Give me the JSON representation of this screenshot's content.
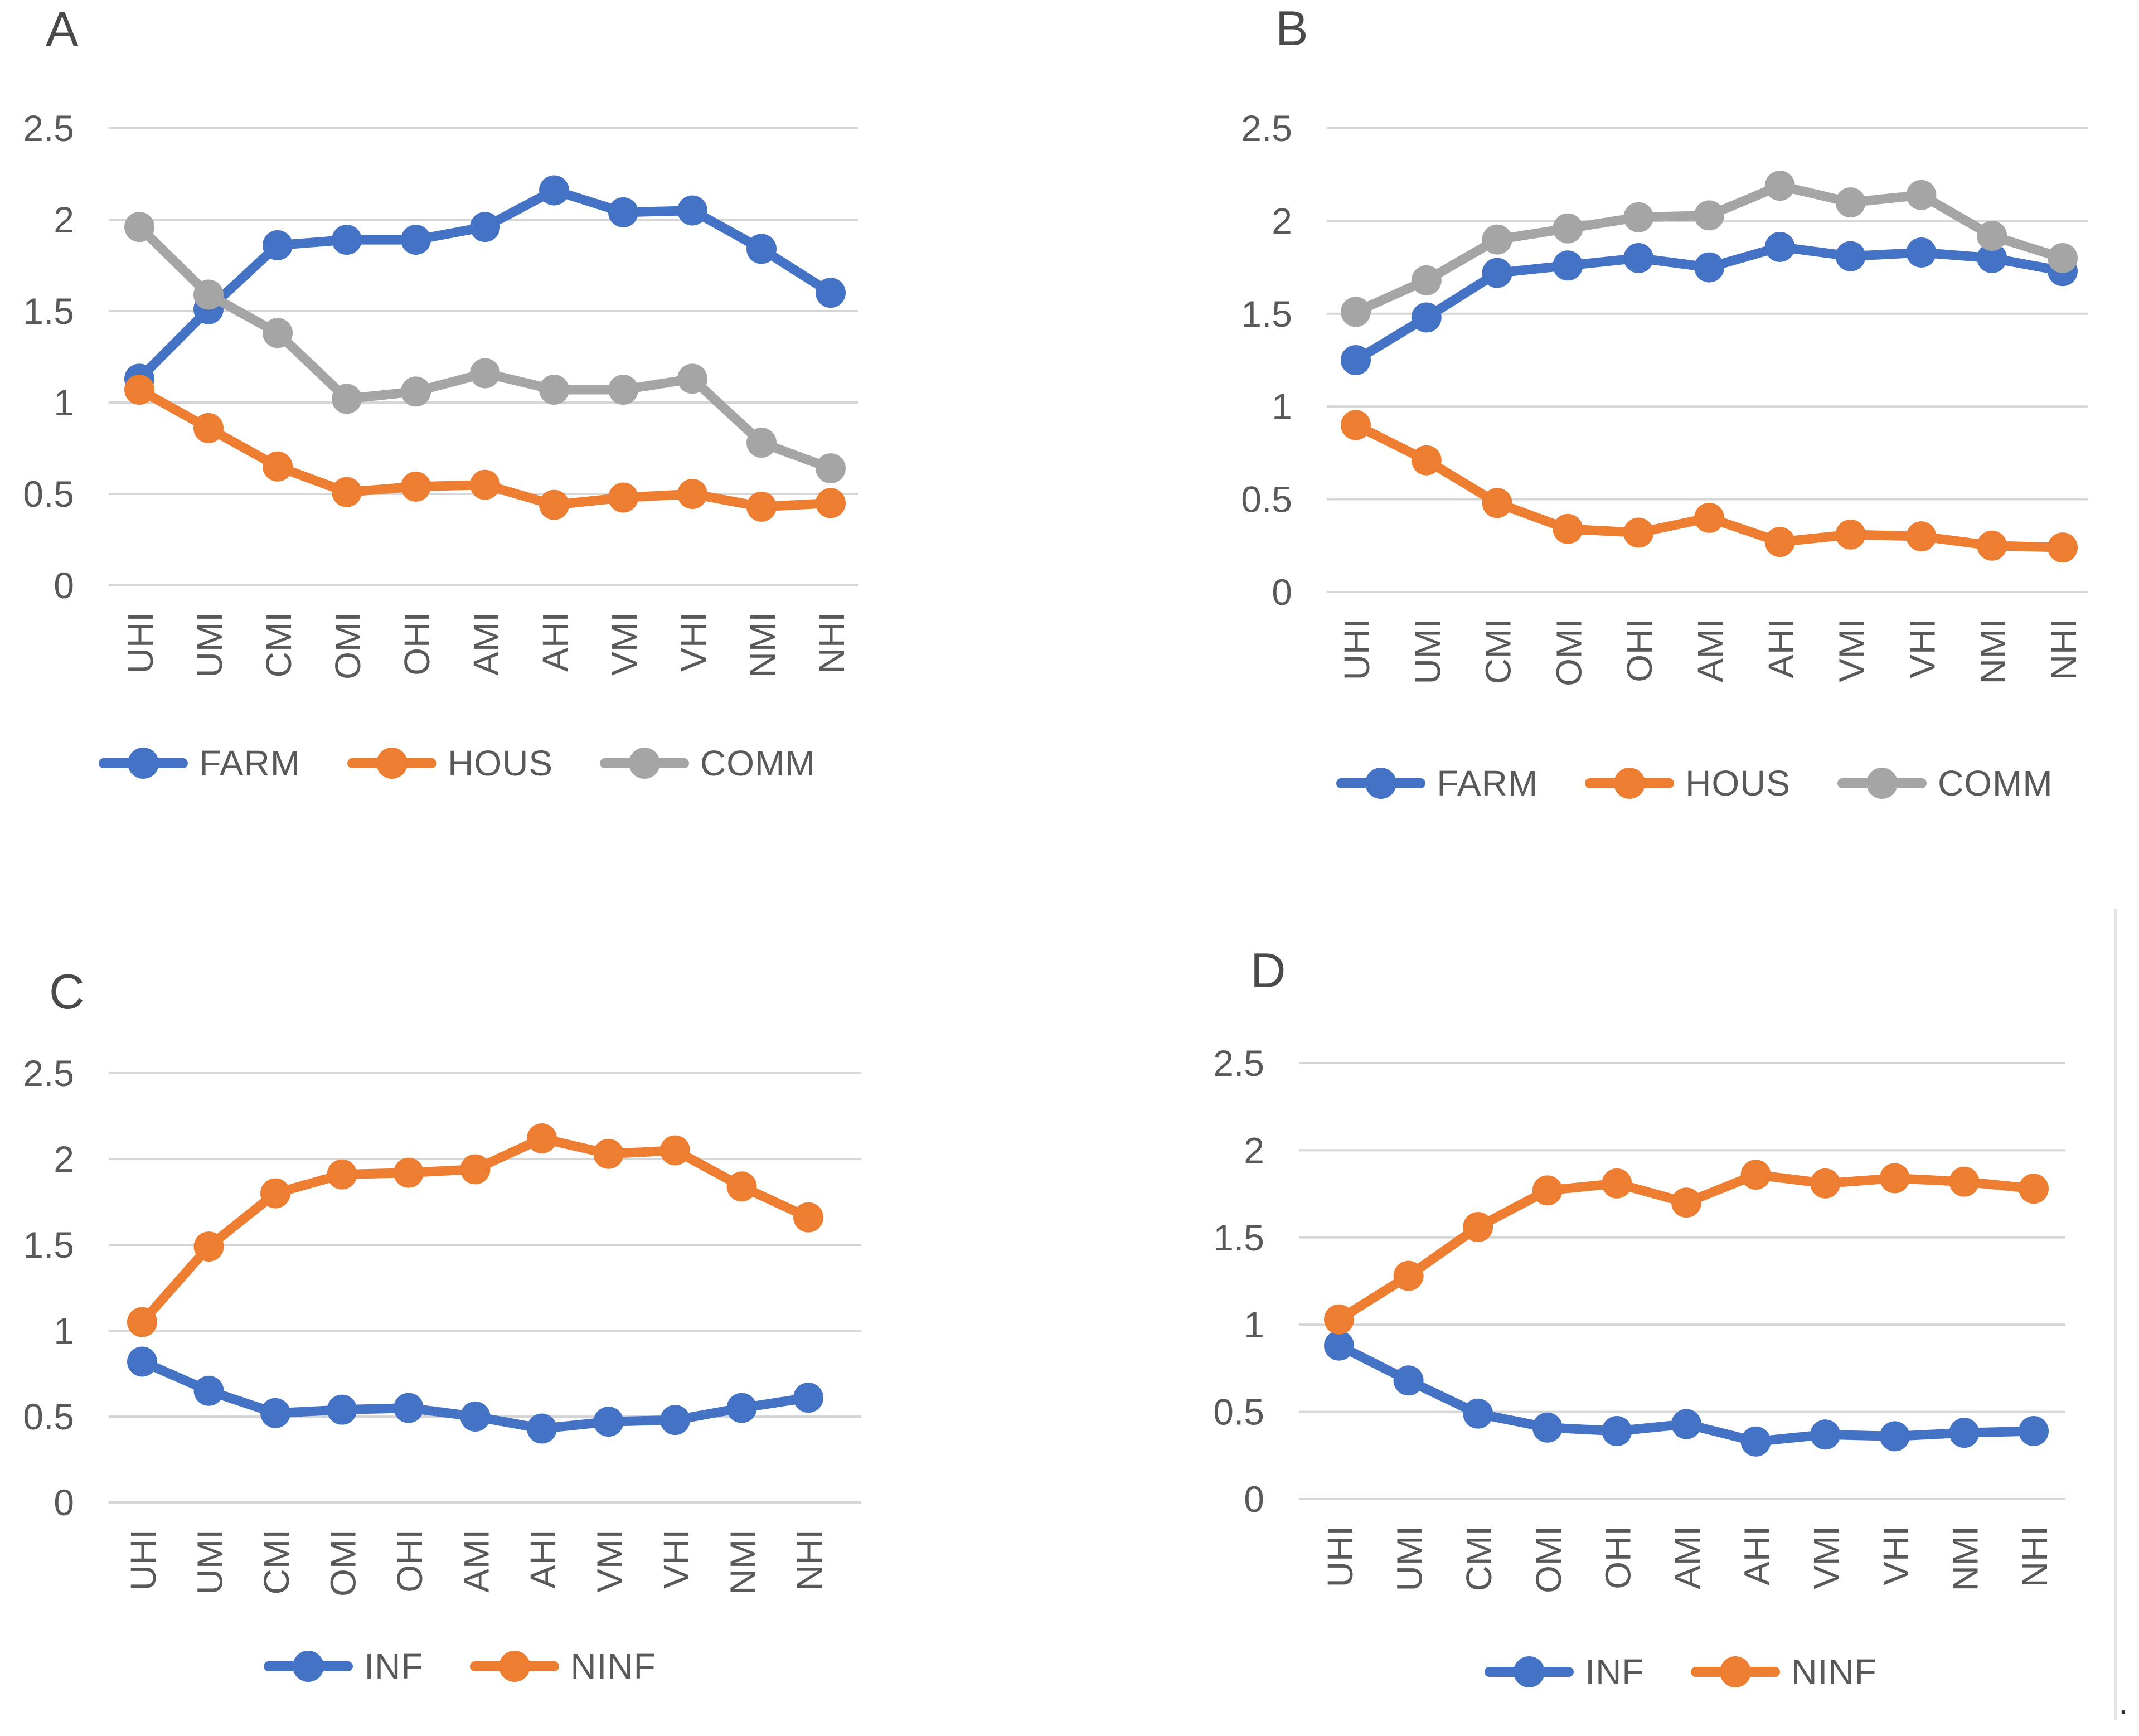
{
  "style": {
    "gridline_color": "#D6D6D6",
    "axis_text_color": "#595959",
    "series_blue": "#4472C4",
    "series_orange": "#ED7D31",
    "series_gray": "#A5A5A5"
  },
  "trailing_period": ".",
  "chart_data": [
    {
      "type": "line",
      "panel_label": "A",
      "title": "",
      "xlabel": "",
      "ylabel": "",
      "ylim": [
        0,
        2.5
      ],
      "yticks": [
        "0",
        "0.5",
        "1",
        "1.5",
        "2",
        "2.5"
      ],
      "grid": true,
      "legend_position": "bottom",
      "categories": [
        "UHI",
        "UMI",
        "CMI",
        "OMI",
        "OHI",
        "AMI",
        "AHI",
        "VMI",
        "VHI",
        "NMI",
        "NHI"
      ],
      "series": [
        {
          "name": "FARM",
          "color": "#4472C4",
          "values": [
            1.13,
            1.51,
            1.86,
            1.89,
            1.89,
            1.96,
            2.16,
            2.04,
            2.05,
            1.84,
            1.6
          ]
        },
        {
          "name": "HOUS",
          "color": "#ED7D31",
          "values": [
            1.07,
            0.86,
            0.65,
            0.51,
            0.54,
            0.55,
            0.44,
            0.48,
            0.5,
            0.43,
            0.45
          ]
        },
        {
          "name": "COMM",
          "color": "#A5A5A5",
          "values": [
            1.96,
            1.59,
            1.38,
            1.02,
            1.06,
            1.16,
            1.07,
            1.07,
            1.13,
            0.78,
            0.64
          ]
        }
      ]
    },
    {
      "type": "line",
      "panel_label": "B",
      "title": "",
      "xlabel": "",
      "ylabel": "",
      "ylim": [
        0,
        2.5
      ],
      "yticks": [
        "0",
        "0.5",
        "1",
        "1.5",
        "2",
        "2.5"
      ],
      "grid": true,
      "legend_position": "bottom",
      "categories": [
        "UHI",
        "UMI",
        "CMI",
        "OMI",
        "OHI",
        "AMI",
        "AHI",
        "VMI",
        "VHI",
        "NMI",
        "NHI"
      ],
      "series": [
        {
          "name": "FARM",
          "color": "#4472C4",
          "values": [
            1.25,
            1.48,
            1.72,
            1.76,
            1.8,
            1.75,
            1.86,
            1.81,
            1.83,
            1.8,
            1.73
          ]
        },
        {
          "name": "HOUS",
          "color": "#ED7D31",
          "values": [
            0.9,
            0.71,
            0.48,
            0.34,
            0.32,
            0.4,
            0.27,
            0.31,
            0.3,
            0.25,
            0.24
          ]
        },
        {
          "name": "COMM",
          "color": "#A5A5A5",
          "values": [
            1.51,
            1.68,
            1.9,
            1.96,
            2.02,
            2.03,
            2.19,
            2.1,
            2.14,
            1.92,
            1.8
          ]
        }
      ]
    },
    {
      "type": "line",
      "panel_label": "C",
      "title": "",
      "xlabel": "",
      "ylabel": "",
      "ylim": [
        0,
        2.5
      ],
      "yticks": [
        "0",
        "0.5",
        "1",
        "1.5",
        "2",
        "2.5"
      ],
      "grid": true,
      "legend_position": "bottom",
      "categories": [
        "UHI",
        "UMI",
        "CMI",
        "OMI",
        "OHI",
        "AMI",
        "AHI",
        "VMI",
        "VHI",
        "NMI",
        "NHI"
      ],
      "series": [
        {
          "name": "INF",
          "color": "#4472C4",
          "values": [
            0.82,
            0.65,
            0.52,
            0.54,
            0.55,
            0.5,
            0.43,
            0.47,
            0.48,
            0.55,
            0.61
          ]
        },
        {
          "name": "NINF",
          "color": "#ED7D31",
          "values": [
            1.05,
            1.49,
            1.8,
            1.91,
            1.92,
            1.94,
            2.12,
            2.03,
            2.05,
            1.84,
            1.66
          ]
        }
      ]
    },
    {
      "type": "line",
      "panel_label": "D",
      "title": "",
      "xlabel": "",
      "ylabel": "",
      "ylim": [
        0,
        2.5
      ],
      "yticks": [
        "0",
        "0.5",
        "1",
        "1.5",
        "2",
        "2.5"
      ],
      "grid": true,
      "legend_position": "bottom",
      "categories": [
        "UHI",
        "UMI",
        "CMI",
        "OMI",
        "OHI",
        "AMI",
        "AHI",
        "VMI",
        "VHI",
        "NMI",
        "NHI"
      ],
      "series": [
        {
          "name": "INF",
          "color": "#4472C4",
          "values": [
            0.88,
            0.68,
            0.49,
            0.41,
            0.39,
            0.43,
            0.33,
            0.37,
            0.36,
            0.38,
            0.39
          ]
        },
        {
          "name": "NINF",
          "color": "#ED7D31",
          "values": [
            1.03,
            1.28,
            1.56,
            1.77,
            1.81,
            1.7,
            1.86,
            1.81,
            1.84,
            1.82,
            1.78
          ]
        }
      ]
    }
  ]
}
